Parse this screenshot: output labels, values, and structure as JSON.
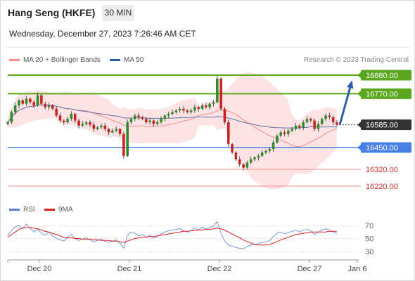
{
  "header": {
    "title": "Hang Seng (HKFE)",
    "timeframe": "30 MIN",
    "datetime": "Wednesday, December 27, 2023 7:26:46 AM CET"
  },
  "legend": {
    "ma20_label": "MA 20 + Bollinger Bands",
    "ma50_label": "MA 50",
    "credit": "Research © 2023 Trading Central",
    "rsi_label": "RSI",
    "ma9_label": "9MA"
  },
  "colors": {
    "ma20": "#f58a8a",
    "bollinger_fill": "#fde3e3",
    "ma50": "#5a6fa8",
    "candle_up": "#2e8b2e",
    "candle_down": "#cc2222",
    "resistance": "#5aa61d",
    "support": "#4a80e6",
    "support_weak": "#f08c8c",
    "target_arrow": "#2d5da8",
    "last_price_badge": "#333333",
    "rsi": "#5a7fd6",
    "rsi_ma": "#e02020"
  },
  "chart_data": [
    {
      "type": "candlestick",
      "title": "Hang Seng (HKFE)",
      "interval": "30 MIN",
      "x_ticks": [
        "Dec 20",
        "Dec 21",
        "Dec 22",
        "Dec 27",
        "Jan 6"
      ],
      "ylim": [
        16180,
        16900
      ],
      "indicators": [
        "MA 20 + Bollinger Bands",
        "MA 50"
      ],
      "levels": [
        {
          "value": 16880.0,
          "label": "16880.00",
          "kind": "resistance"
        },
        {
          "value": 16770.0,
          "label": "16770.00",
          "kind": "resistance"
        },
        {
          "value": 16585.0,
          "label": "16585.00",
          "kind": "last"
        },
        {
          "value": 16450.0,
          "label": "16450.00",
          "kind": "support"
        },
        {
          "value": 16320.0,
          "label": "16320.00",
          "kind": "support_weak"
        },
        {
          "value": 16220.0,
          "label": "16220.00",
          "kind": "support_weak"
        }
      ],
      "target": {
        "from": 16585,
        "to": 16840
      },
      "closes": [
        16600,
        16660,
        16700,
        16730,
        16710,
        16740,
        16720,
        16700,
        16760,
        16710,
        16690,
        16700,
        16680,
        16640,
        16610,
        16600,
        16620,
        16650,
        16610,
        16580,
        16590,
        16600,
        16585,
        16560,
        16570,
        16580,
        16560,
        16540,
        16550,
        16560,
        16530,
        16400,
        16600,
        16620,
        16640,
        16630,
        16620,
        16600,
        16610,
        16590,
        16600,
        16620,
        16640,
        16650,
        16660,
        16670,
        16680,
        16670,
        16660,
        16670,
        16690,
        16680,
        16700,
        16690,
        16710,
        16720,
        16860,
        16680,
        16600,
        16470,
        16420,
        16380,
        16350,
        16330,
        16360,
        16380,
        16390,
        16400,
        16420,
        16430,
        16440,
        16480,
        16520,
        16540,
        16530,
        16550,
        16560,
        16580,
        16570,
        16600,
        16620,
        16610,
        16560,
        16590,
        16620,
        16640,
        16630,
        16600,
        16585
      ]
    },
    {
      "type": "line",
      "title": "RSI",
      "series": [
        {
          "name": "RSI",
          "values": [
            55,
            62,
            68,
            70,
            65,
            72,
            66,
            60,
            64,
            58,
            55,
            60,
            54,
            50,
            48,
            46,
            52,
            56,
            50,
            47,
            49,
            51,
            48,
            45,
            47,
            49,
            46,
            44,
            46,
            48,
            43,
            35,
            55,
            60,
            58,
            54,
            56,
            52,
            55,
            51,
            53,
            57,
            60,
            62,
            63,
            64,
            65,
            62,
            60,
            62,
            66,
            63,
            68,
            64,
            67,
            69,
            76,
            58,
            46,
            40,
            38,
            36,
            35,
            34,
            38,
            40,
            41,
            42,
            44,
            45,
            47,
            53,
            58,
            60,
            57,
            59,
            61,
            63,
            60,
            63,
            64,
            62,
            56,
            60,
            63,
            65,
            63,
            60,
            58
          ]
        },
        {
          "name": "9MA",
          "values": [
            52,
            56,
            60,
            64,
            66,
            67,
            67,
            66,
            65,
            63,
            61,
            60,
            58,
            56,
            54,
            52,
            51,
            51,
            50,
            50,
            49,
            49,
            49,
            48,
            48,
            47,
            47,
            47,
            46,
            46,
            45,
            44,
            46,
            48,
            50,
            51,
            52,
            52,
            53,
            53,
            54,
            55,
            56,
            57,
            58,
            59,
            60,
            61,
            61,
            62,
            62,
            63,
            63,
            64,
            64,
            65,
            66,
            65,
            63,
            60,
            57,
            54,
            51,
            48,
            45,
            43,
            41,
            40,
            40,
            40,
            41,
            43,
            45,
            48,
            50,
            52,
            54,
            56,
            57,
            58,
            59,
            60,
            60,
            60,
            60,
            60,
            61,
            61,
            61
          ]
        }
      ],
      "y_ticks": [
        70,
        50,
        30
      ],
      "ylim": [
        20,
        80
      ]
    }
  ]
}
